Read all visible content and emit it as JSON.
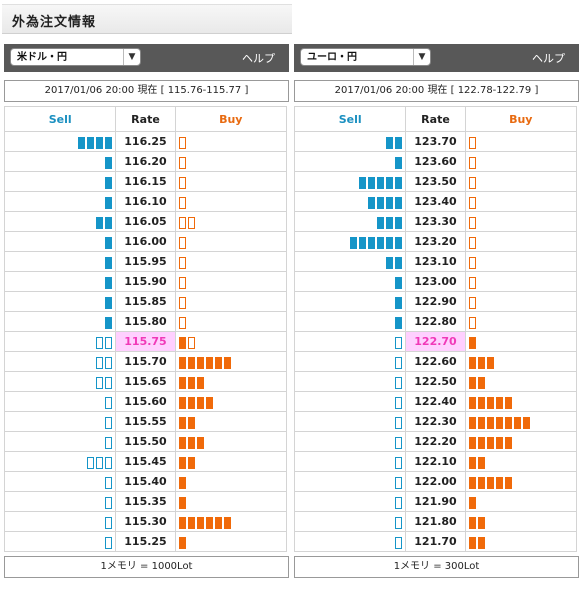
{
  "page": {
    "title": "外為注文情報"
  },
  "panels": [
    {
      "currency": "米ドル・円",
      "help": "ヘルプ",
      "header_date": "2017/01/06 20:00 現在 [ 115.76-115.77 ]",
      "cols": {
        "sell": "Sell",
        "rate": "Rate",
        "buy": "Buy"
      },
      "footer": "1メモリ = 1000Lot",
      "rows": [
        {
          "rate": "116.25",
          "sell_filled": 4,
          "sell_open": 0,
          "buy_filled": 0,
          "buy_open": 1,
          "current": false
        },
        {
          "rate": "116.20",
          "sell_filled": 1,
          "sell_open": 0,
          "buy_filled": 0,
          "buy_open": 1,
          "current": false
        },
        {
          "rate": "116.15",
          "sell_filled": 1,
          "sell_open": 0,
          "buy_filled": 0,
          "buy_open": 1,
          "current": false
        },
        {
          "rate": "116.10",
          "sell_filled": 1,
          "sell_open": 0,
          "buy_filled": 0,
          "buy_open": 1,
          "current": false
        },
        {
          "rate": "116.05",
          "sell_filled": 2,
          "sell_open": 0,
          "buy_filled": 0,
          "buy_open": 2,
          "current": false
        },
        {
          "rate": "116.00",
          "sell_filled": 1,
          "sell_open": 0,
          "buy_filled": 0,
          "buy_open": 1,
          "current": false
        },
        {
          "rate": "115.95",
          "sell_filled": 1,
          "sell_open": 0,
          "buy_filled": 0,
          "buy_open": 1,
          "current": false
        },
        {
          "rate": "115.90",
          "sell_filled": 1,
          "sell_open": 0,
          "buy_filled": 0,
          "buy_open": 1,
          "current": false
        },
        {
          "rate": "115.85",
          "sell_filled": 1,
          "sell_open": 0,
          "buy_filled": 0,
          "buy_open": 1,
          "current": false
        },
        {
          "rate": "115.80",
          "sell_filled": 1,
          "sell_open": 0,
          "buy_filled": 0,
          "buy_open": 1,
          "current": false
        },
        {
          "rate": "115.75",
          "sell_filled": 0,
          "sell_open": 2,
          "buy_filled": 1,
          "buy_open": 1,
          "current": true
        },
        {
          "rate": "115.70",
          "sell_filled": 0,
          "sell_open": 2,
          "buy_filled": 6,
          "buy_open": 0,
          "current": false
        },
        {
          "rate": "115.65",
          "sell_filled": 0,
          "sell_open": 2,
          "buy_filled": 3,
          "buy_open": 0,
          "current": false
        },
        {
          "rate": "115.60",
          "sell_filled": 0,
          "sell_open": 1,
          "buy_filled": 4,
          "buy_open": 0,
          "current": false
        },
        {
          "rate": "115.55",
          "sell_filled": 0,
          "sell_open": 1,
          "buy_filled": 2,
          "buy_open": 0,
          "current": false
        },
        {
          "rate": "115.50",
          "sell_filled": 0,
          "sell_open": 1,
          "buy_filled": 3,
          "buy_open": 0,
          "current": false
        },
        {
          "rate": "115.45",
          "sell_filled": 0,
          "sell_open": 3,
          "buy_filled": 2,
          "buy_open": 0,
          "current": false
        },
        {
          "rate": "115.40",
          "sell_filled": 0,
          "sell_open": 1,
          "buy_filled": 1,
          "buy_open": 0,
          "current": false
        },
        {
          "rate": "115.35",
          "sell_filled": 0,
          "sell_open": 1,
          "buy_filled": 1,
          "buy_open": 0,
          "current": false
        },
        {
          "rate": "115.30",
          "sell_filled": 0,
          "sell_open": 1,
          "buy_filled": 6,
          "buy_open": 0,
          "current": false
        },
        {
          "rate": "115.25",
          "sell_filled": 0,
          "sell_open": 1,
          "buy_filled": 1,
          "buy_open": 0,
          "current": false
        }
      ]
    },
    {
      "currency": "ユーロ・円",
      "help": "ヘルプ",
      "header_date": "2017/01/06 20:00 現在 [ 122.78-122.79 ]",
      "cols": {
        "sell": "Sell",
        "rate": "Rate",
        "buy": "Buy"
      },
      "footer": "1メモリ = 300Lot",
      "rows": [
        {
          "rate": "123.70",
          "sell_filled": 2,
          "sell_open": 0,
          "buy_filled": 0,
          "buy_open": 1,
          "current": false
        },
        {
          "rate": "123.60",
          "sell_filled": 1,
          "sell_open": 0,
          "buy_filled": 0,
          "buy_open": 1,
          "current": false
        },
        {
          "rate": "123.50",
          "sell_filled": 5,
          "sell_open": 0,
          "buy_filled": 0,
          "buy_open": 1,
          "current": false
        },
        {
          "rate": "123.40",
          "sell_filled": 4,
          "sell_open": 0,
          "buy_filled": 0,
          "buy_open": 1,
          "current": false
        },
        {
          "rate": "123.30",
          "sell_filled": 3,
          "sell_open": 0,
          "buy_filled": 0,
          "buy_open": 1,
          "current": false
        },
        {
          "rate": "123.20",
          "sell_filled": 6,
          "sell_open": 0,
          "buy_filled": 0,
          "buy_open": 1,
          "current": false
        },
        {
          "rate": "123.10",
          "sell_filled": 2,
          "sell_open": 0,
          "buy_filled": 0,
          "buy_open": 1,
          "current": false
        },
        {
          "rate": "123.00",
          "sell_filled": 1,
          "sell_open": 0,
          "buy_filled": 0,
          "buy_open": 1,
          "current": false
        },
        {
          "rate": "122.90",
          "sell_filled": 1,
          "sell_open": 0,
          "buy_filled": 0,
          "buy_open": 1,
          "current": false
        },
        {
          "rate": "122.80",
          "sell_filled": 1,
          "sell_open": 0,
          "buy_filled": 0,
          "buy_open": 1,
          "current": false
        },
        {
          "rate": "122.70",
          "sell_filled": 0,
          "sell_open": 1,
          "buy_filled": 1,
          "buy_open": 0,
          "current": true
        },
        {
          "rate": "122.60",
          "sell_filled": 0,
          "sell_open": 1,
          "buy_filled": 3,
          "buy_open": 0,
          "current": false
        },
        {
          "rate": "122.50",
          "sell_filled": 0,
          "sell_open": 1,
          "buy_filled": 2,
          "buy_open": 0,
          "current": false
        },
        {
          "rate": "122.40",
          "sell_filled": 0,
          "sell_open": 1,
          "buy_filled": 5,
          "buy_open": 0,
          "current": false
        },
        {
          "rate": "122.30",
          "sell_filled": 0,
          "sell_open": 1,
          "buy_filled": 7,
          "buy_open": 0,
          "current": false
        },
        {
          "rate": "122.20",
          "sell_filled": 0,
          "sell_open": 1,
          "buy_filled": 5,
          "buy_open": 0,
          "current": false
        },
        {
          "rate": "122.10",
          "sell_filled": 0,
          "sell_open": 1,
          "buy_filled": 2,
          "buy_open": 0,
          "current": false
        },
        {
          "rate": "122.00",
          "sell_filled": 0,
          "sell_open": 1,
          "buy_filled": 5,
          "buy_open": 0,
          "current": false
        },
        {
          "rate": "121.90",
          "sell_filled": 0,
          "sell_open": 1,
          "buy_filled": 1,
          "buy_open": 0,
          "current": false
        },
        {
          "rate": "121.80",
          "sell_filled": 0,
          "sell_open": 1,
          "buy_filled": 2,
          "buy_open": 0,
          "current": false
        },
        {
          "rate": "121.70",
          "sell_filled": 0,
          "sell_open": 1,
          "buy_filled": 2,
          "buy_open": 0,
          "current": false
        }
      ]
    }
  ],
  "colors": {
    "sell": "#1595c8",
    "buy": "#f06a0a",
    "current_rate_bg": "#ffd0ff",
    "current_rate_text": "#f039b8"
  },
  "icons": {
    "dropdown": "chevron-down-icon"
  }
}
